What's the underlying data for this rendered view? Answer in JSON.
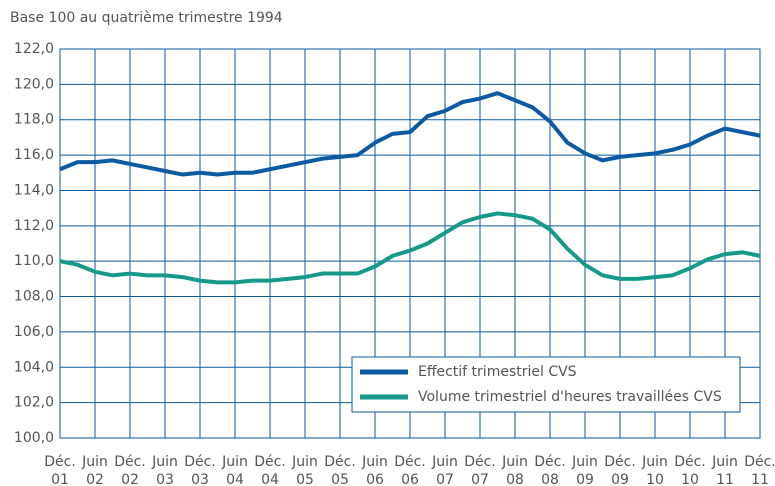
{
  "chart_data": {
    "type": "line",
    "subtitle": "Base 100 au quatrième trimestre 1994",
    "categories": [
      "Déc.\n01",
      null,
      "Juin\n02",
      null,
      "Déc.\n02",
      null,
      "Juin\n03",
      null,
      "Déc.\n03",
      null,
      "Juin\n04",
      null,
      "Déc.\n04",
      null,
      "Juin\n05",
      null,
      "Déc.\n05",
      null,
      "Juin\n06",
      null,
      "Déc.\n06",
      null,
      "Juin\n07",
      null,
      "Déc.\n07",
      null,
      "Juin\n08",
      null,
      "Déc.\n08",
      null,
      "Juin\n09",
      null,
      "Déc.\n09",
      null,
      "Juin\n10",
      null,
      "Déc.\n10",
      null,
      "Juin\n11",
      null,
      "Déc.\n11"
    ],
    "series": [
      {
        "name": "Effectif trimestriel CVS",
        "color": "#0b5aa2",
        "values": [
          115.2,
          115.6,
          115.6,
          115.7,
          115.5,
          115.3,
          115.1,
          114.9,
          115.0,
          114.9,
          115.0,
          115.0,
          115.2,
          115.4,
          115.6,
          115.8,
          115.9,
          116.0,
          116.7,
          117.2,
          117.3,
          118.2,
          118.5,
          119.0,
          119.2,
          119.5,
          119.1,
          118.7,
          117.9,
          116.7,
          116.1,
          115.7,
          115.9,
          116.0,
          116.1,
          116.3,
          116.6,
          117.1,
          117.5,
          117.3,
          117.1
        ]
      },
      {
        "name": "Volume trimestriel d'heures travaillées CVS",
        "color": "#17998a",
        "values": [
          110.0,
          109.8,
          109.4,
          109.2,
          109.3,
          109.2,
          109.2,
          109.1,
          108.9,
          108.8,
          108.8,
          108.9,
          108.9,
          109.0,
          109.1,
          109.3,
          109.3,
          109.3,
          109.7,
          110.3,
          110.6,
          111.0,
          111.6,
          112.2,
          112.5,
          112.7,
          112.6,
          112.4,
          111.8,
          110.7,
          109.8,
          109.2,
          109.0,
          109.0,
          109.1,
          109.2,
          109.6,
          110.1,
          110.4,
          110.5,
          110.3
        ]
      }
    ],
    "ylim": [
      100,
      122
    ],
    "yticks": [
      {
        "value": 100,
        "label": "100,0"
      },
      {
        "value": 102,
        "label": "102,0"
      },
      {
        "value": 104,
        "label": "104,0"
      },
      {
        "value": 106,
        "label": "106,0"
      },
      {
        "value": 108,
        "label": "108,0"
      },
      {
        "value": 110,
        "label": "110,0"
      },
      {
        "value": 112,
        "label": "112,0"
      },
      {
        "value": 114,
        "label": "114,0"
      },
      {
        "value": 116,
        "label": "116,0"
      },
      {
        "value": 118,
        "label": "118,0"
      },
      {
        "value": 120,
        "label": "120,0"
      },
      {
        "value": 122,
        "label": "122,0"
      }
    ],
    "grid": true
  }
}
